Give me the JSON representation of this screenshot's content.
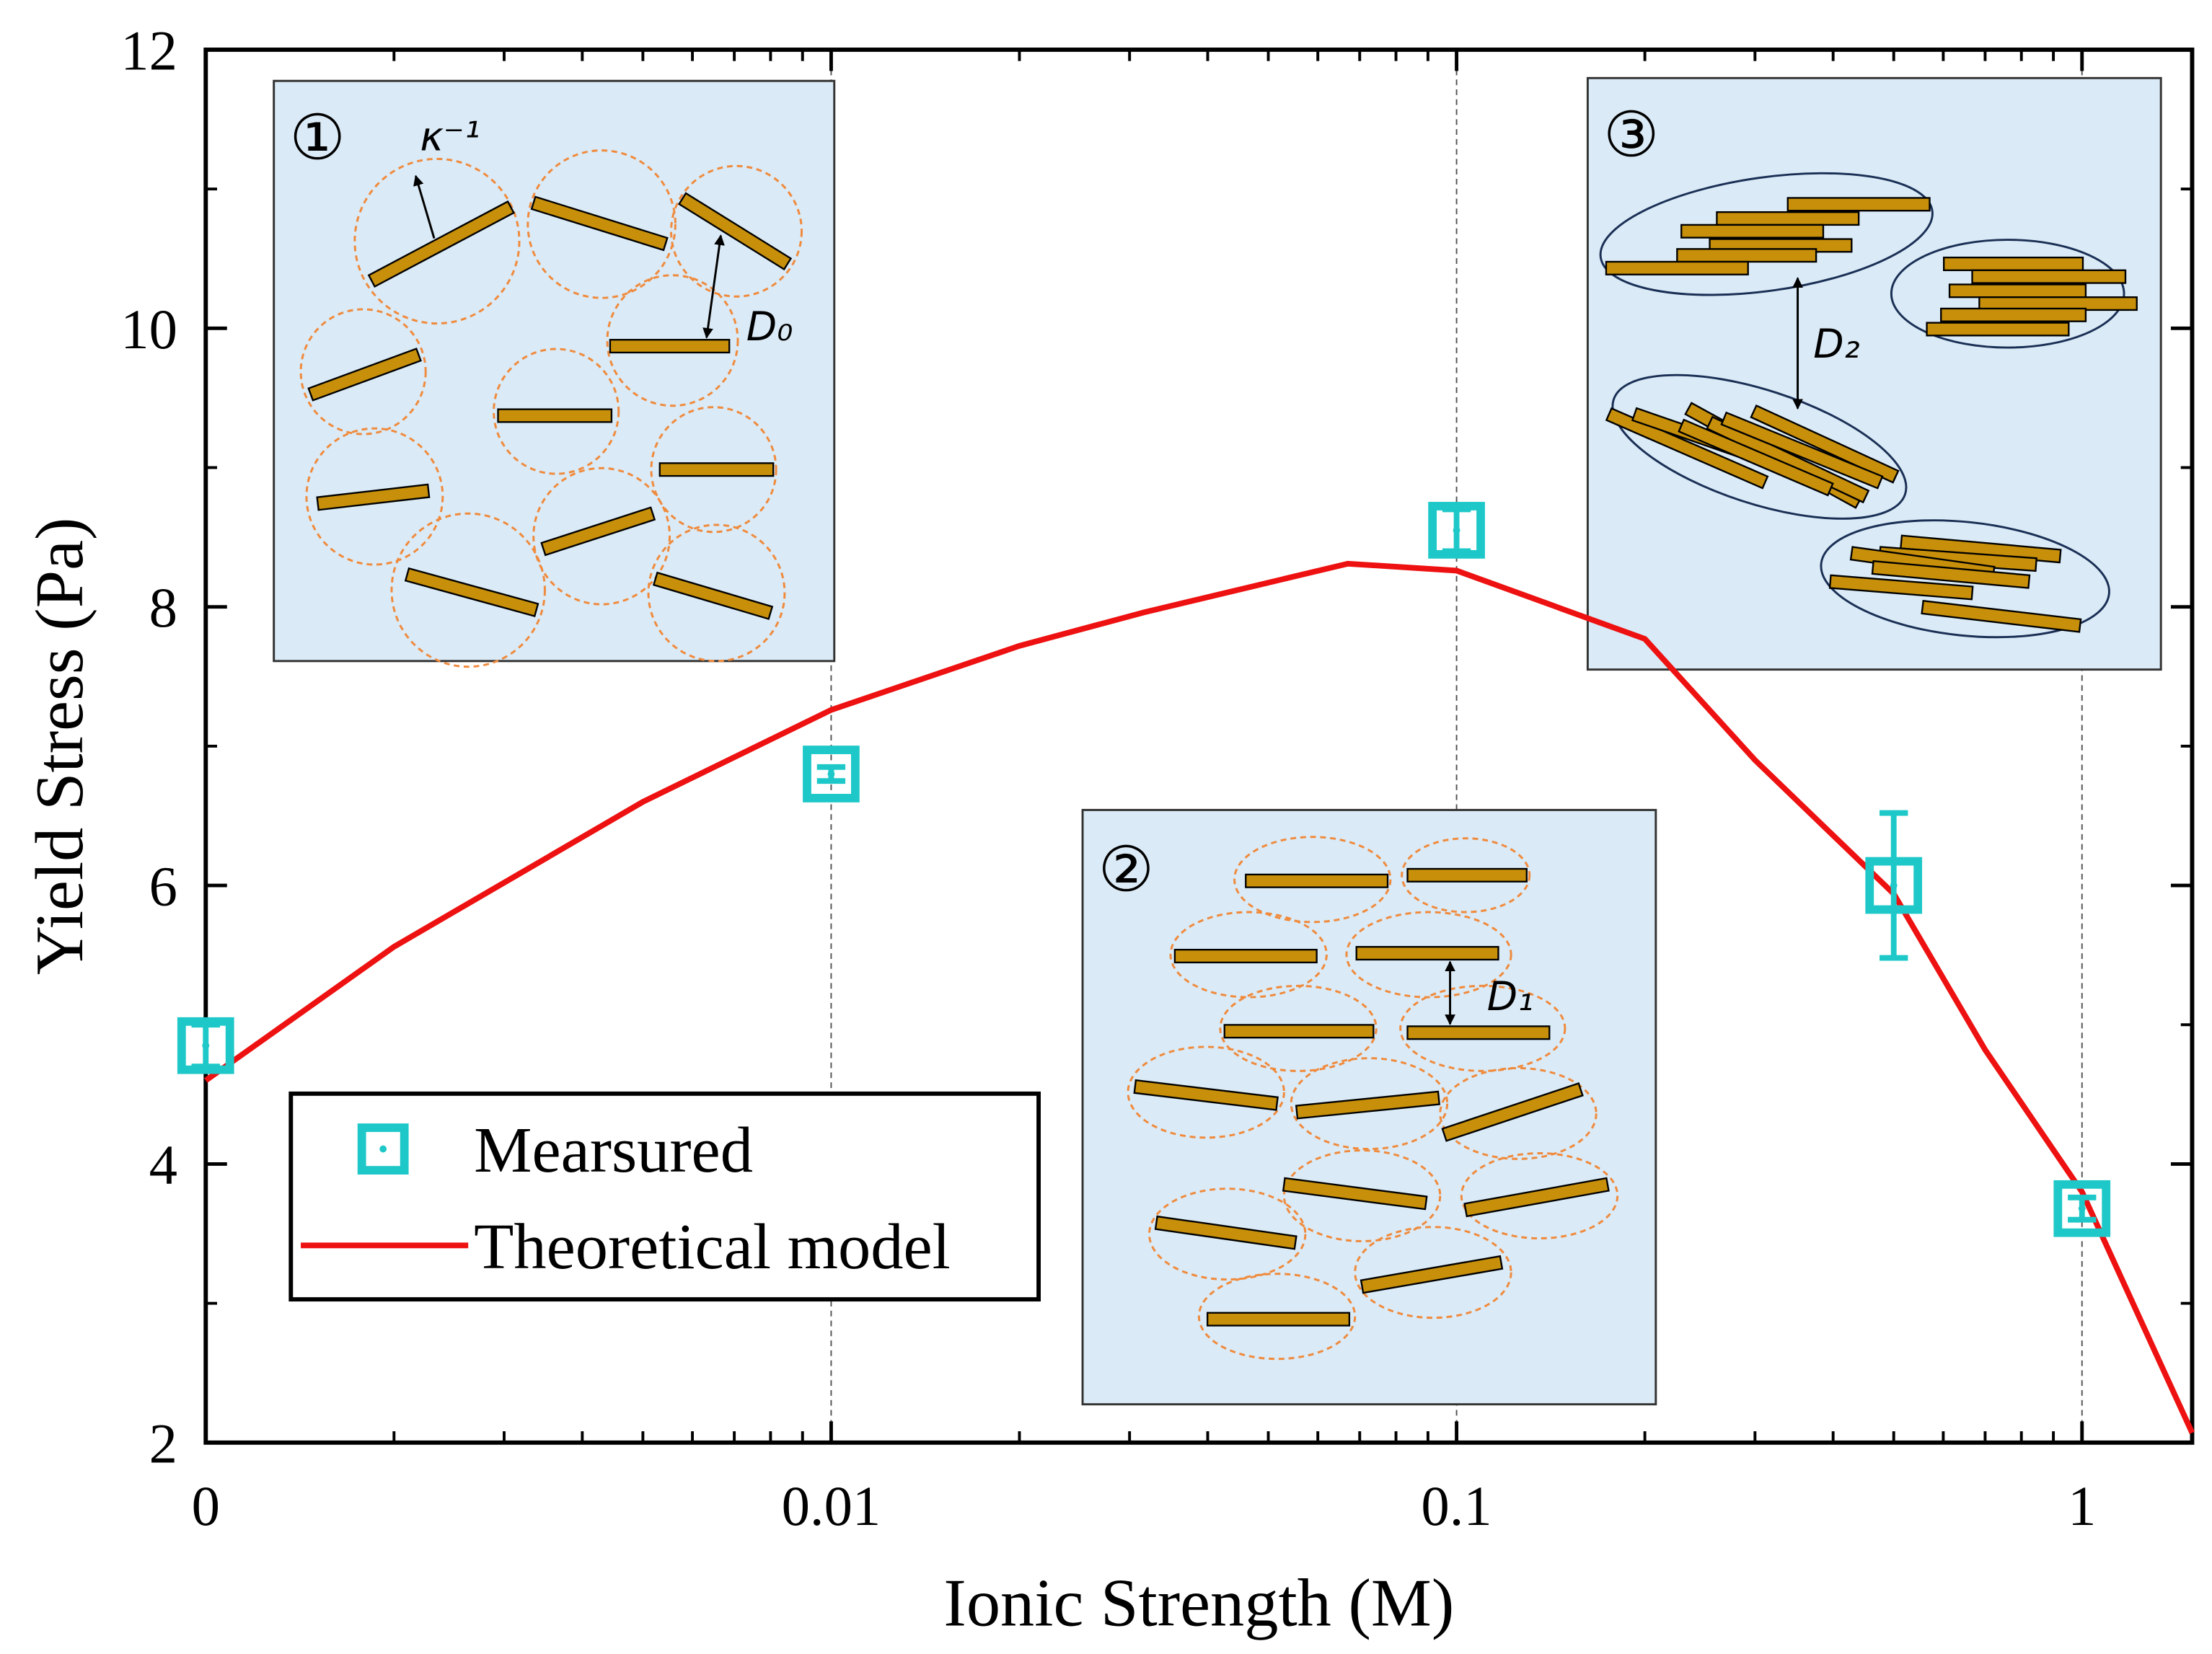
{
  "chart_data": {
    "type": "scatter",
    "x_label": "Ionic Strength (M)",
    "y_label": "Yield Stress (Pa)",
    "xscale": "log",
    "xlim": [
      0.001,
      1.5
    ],
    "xticks": [
      {
        "value": 0.001,
        "label": "0"
      },
      0.01,
      0.1,
      1
    ],
    "xminorticks": [
      0.002,
      0.003,
      0.004,
      0.005,
      0.006,
      0.007,
      0.008,
      0.009,
      0.02,
      0.03,
      0.04,
      0.05,
      0.06,
      0.07,
      0.08,
      0.09,
      0.2,
      0.3,
      0.4,
      0.5,
      0.6,
      0.7,
      0.8,
      0.9
    ],
    "ylim": [
      2,
      12
    ],
    "yticks": [
      2,
      4,
      6,
      8,
      10,
      12
    ],
    "yminorticks": [
      3,
      5,
      7,
      9,
      11
    ],
    "xgrid": true,
    "legend": "lower left",
    "series": [
      {
        "name": "Mearsured",
        "type": "scatter",
        "color": "#1ec8c8",
        "x": [
          0.001,
          0.01,
          0.1,
          0.5,
          1
        ],
        "values": [
          4.85,
          6.8,
          8.55,
          6.0,
          3.68
        ],
        "errors": [
          0.15,
          0.05,
          0.15,
          0.52,
          0.08
        ]
      },
      {
        "name": "Theoretical model",
        "type": "line",
        "color": "#ee1111",
        "x": [
          0.001,
          0.002,
          0.005,
          0.01,
          0.02,
          0.0316,
          0.067,
          0.1,
          0.2,
          0.3,
          0.5,
          0.7,
          1,
          1.5
        ],
        "values": [
          4.6,
          5.56,
          6.6,
          7.26,
          7.72,
          7.96,
          8.31,
          8.26,
          7.77,
          6.9,
          5.94,
          4.82,
          3.8,
          2.07
        ]
      }
    ],
    "insets": [
      {
        "label": "①",
        "spacing": "D₀",
        "debye": "κ⁻¹"
      },
      {
        "label": "②",
        "spacing": "D₁"
      },
      {
        "label": "③",
        "spacing": "D₂"
      }
    ]
  }
}
